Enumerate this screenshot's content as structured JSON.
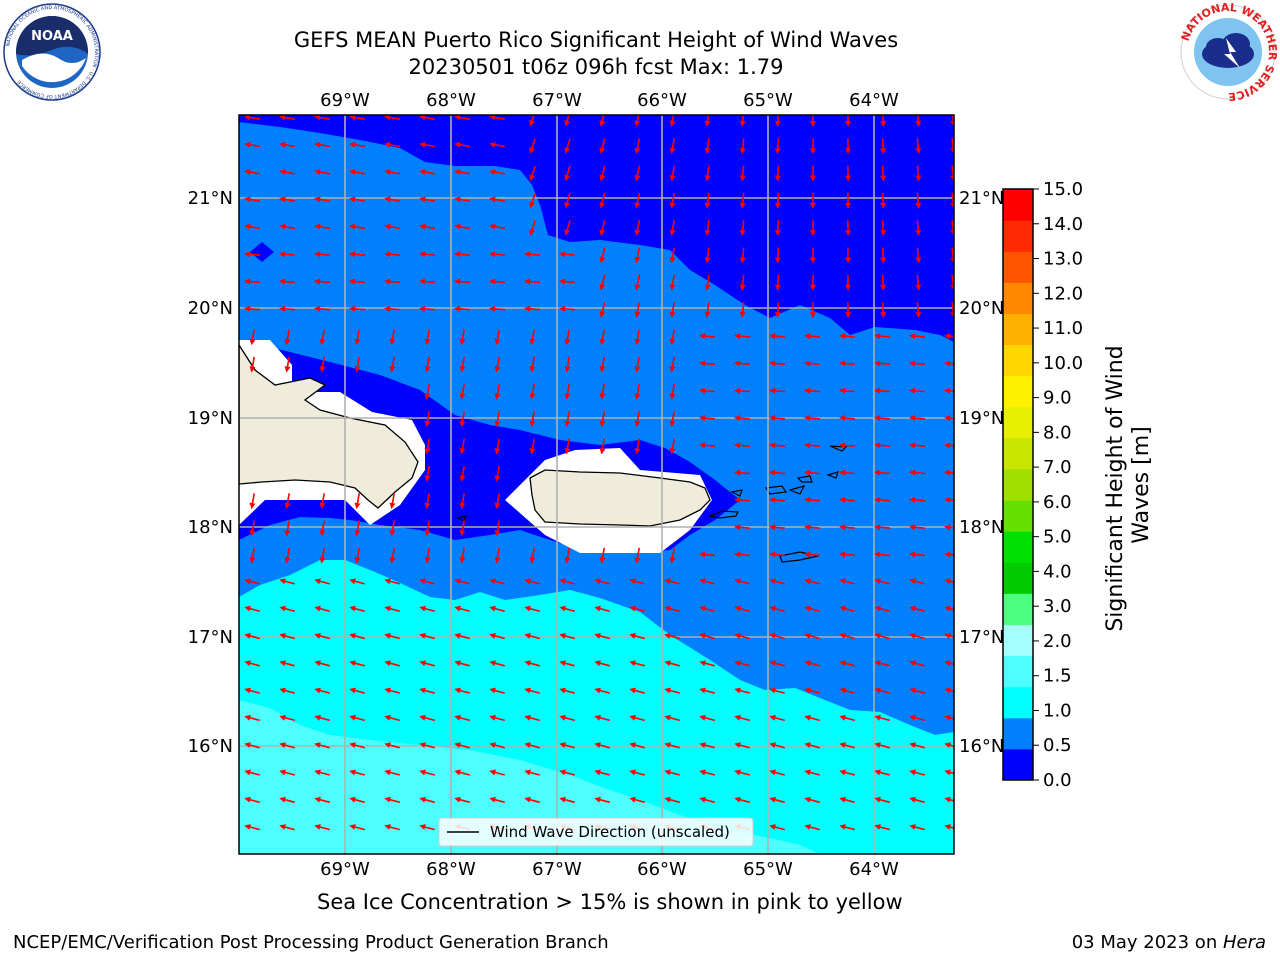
{
  "title": {
    "line1": "GEFS MEAN Puerto Rico Significant Height of Wind Waves",
    "line2": "20230501 t06z 096h fcst   Max: 1.79"
  },
  "logos": {
    "left": {
      "text": "NOAA",
      "ring_text": "NATIONAL OCEANIC AND ATMOSPHERIC ADMINISTRATION · U.S. DEPARTMENT OF COMMERCE"
    },
    "right": {
      "ring_text": "NATIONAL WEATHER SERVICE"
    }
  },
  "map": {
    "lon_labels": [
      "69°W",
      "68°W",
      "67°W",
      "66°W",
      "65°W",
      "64°W"
    ],
    "lat_labels": [
      "21°N",
      "20°N",
      "19°N",
      "18°N",
      "17°N",
      "16°N"
    ],
    "legend_label": "Wind Wave Direction (unscaled)",
    "arrow_color": "#ff0000",
    "land_color": "#efecdc",
    "grid_color": "#b0b0b0"
  },
  "colorbar": {
    "label": "Significant Height of Wind Waves [m]",
    "ticks": [
      "15.0",
      "14.0",
      "13.0",
      "12.0",
      "11.0",
      "10.0",
      "9.0",
      "8.0",
      "7.0",
      "6.0",
      "5.0",
      "4.0",
      "3.0",
      "2.0",
      "1.5",
      "1.0",
      "0.5",
      "0.0"
    ],
    "colors": [
      "#0000ff",
      "#0080ff",
      "#00ffff",
      "#4dffff",
      "#a6ffff",
      "#4dff80",
      "#00cc00",
      "#00e000",
      "#66e000",
      "#a0e000",
      "#c8e600",
      "#e6f000",
      "#fff000",
      "#ffd700",
      "#ffb000",
      "#ff8800",
      "#ff5500",
      "#ff2a00",
      "#ff0000"
    ]
  },
  "notes": {
    "sea_ice": "Sea Ice Concentration > 15% is shown in pink to yellow"
  },
  "footer": {
    "left": "NCEP/EMC/Verification Post Processing Product Generation Branch",
    "right_prefix": "03 May 2023 on ",
    "right_host": "Hera"
  }
}
